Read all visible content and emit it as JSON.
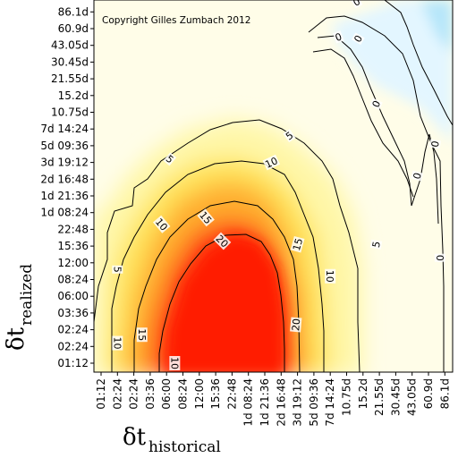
{
  "chart_data": {
    "type": "heatmap",
    "title": "",
    "copyright": "Copyright Gilles Zumbach 2012",
    "xlabel": {
      "symbol": "δt",
      "subscript": "historical"
    },
    "ylabel": {
      "symbol": "δt",
      "subscript": "realized"
    },
    "x_ticks": [
      "01:12",
      "02:24",
      "02:24",
      "03:36",
      "06:00",
      "08:24",
      "12:00",
      "15:36",
      "22:48",
      "1d 08:24",
      "1d 21:36",
      "2d 16:48",
      "3d 19:12",
      "5d 09:36",
      "7d 14:24",
      "10.75d",
      "15.2d",
      "21.55d",
      "30.45d",
      "43.05d",
      "60.9d",
      "86.1d"
    ],
    "y_ticks": [
      "01:12",
      "02:24",
      "02:24",
      "03:36",
      "06:00",
      "08:24",
      "12:00",
      "15:36",
      "22:48",
      "1d 08:24",
      "1d 21:36",
      "2d 16:48",
      "3d 19:12",
      "5d 09:36",
      "7d 14:24",
      "10.75d",
      "15.2d",
      "21.55d",
      "30.45d",
      "43.05d",
      "60.9d",
      "86.1d"
    ],
    "contour_levels": [
      0,
      5,
      10,
      15,
      20
    ],
    "contour_labels": [
      {
        "text": "0",
        "x": 15.6,
        "y": 21.6,
        "rotate": -30
      },
      {
        "text": "0",
        "x": 14.5,
        "y": 19.5,
        "rotate": -20
      },
      {
        "text": "0",
        "x": 15.7,
        "y": 19.4,
        "rotate": -60
      },
      {
        "text": "0",
        "x": 16.8,
        "y": 15.5,
        "rotate": -65
      },
      {
        "text": "0",
        "x": 19.3,
        "y": 11.2,
        "rotate": -75
      },
      {
        "text": "0",
        "x": 20.4,
        "y": 13.1,
        "rotate": -80
      },
      {
        "text": "0",
        "x": 20.7,
        "y": 6.3,
        "rotate": -90
      },
      {
        "text": "5",
        "x": 11.5,
        "y": 13.6,
        "rotate": -35
      },
      {
        "text": "5",
        "x": 4.2,
        "y": 12.2,
        "rotate": 40
      },
      {
        "text": "5",
        "x": 1.0,
        "y": 5.6,
        "rotate": 90
      },
      {
        "text": "5",
        "x": 16.8,
        "y": 7.1,
        "rotate": -80
      },
      {
        "text": "10",
        "x": 10.4,
        "y": 12.0,
        "rotate": -25
      },
      {
        "text": "10",
        "x": 3.7,
        "y": 8.3,
        "rotate": 50
      },
      {
        "text": "10",
        "x": 1.0,
        "y": 1.2,
        "rotate": 90
      },
      {
        "text": "10",
        "x": 14.0,
        "y": 5.2,
        "rotate": 90
      },
      {
        "text": "10",
        "x": 4.5,
        "y": 0.0,
        "rotate": 90
      },
      {
        "text": "15",
        "x": 6.4,
        "y": 8.7,
        "rotate": 50
      },
      {
        "text": "15",
        "x": 2.5,
        "y": 1.7,
        "rotate": 90
      },
      {
        "text": "15",
        "x": 12.0,
        "y": 7.1,
        "rotate": -75
      },
      {
        "text": "20",
        "x": 7.4,
        "y": 7.3,
        "rotate": 45
      },
      {
        "text": "20",
        "x": 11.9,
        "y": 2.3,
        "rotate": -85
      }
    ],
    "grid": false,
    "colorscale": "red (high) – yellow – white (0) – light blue (negative)"
  }
}
